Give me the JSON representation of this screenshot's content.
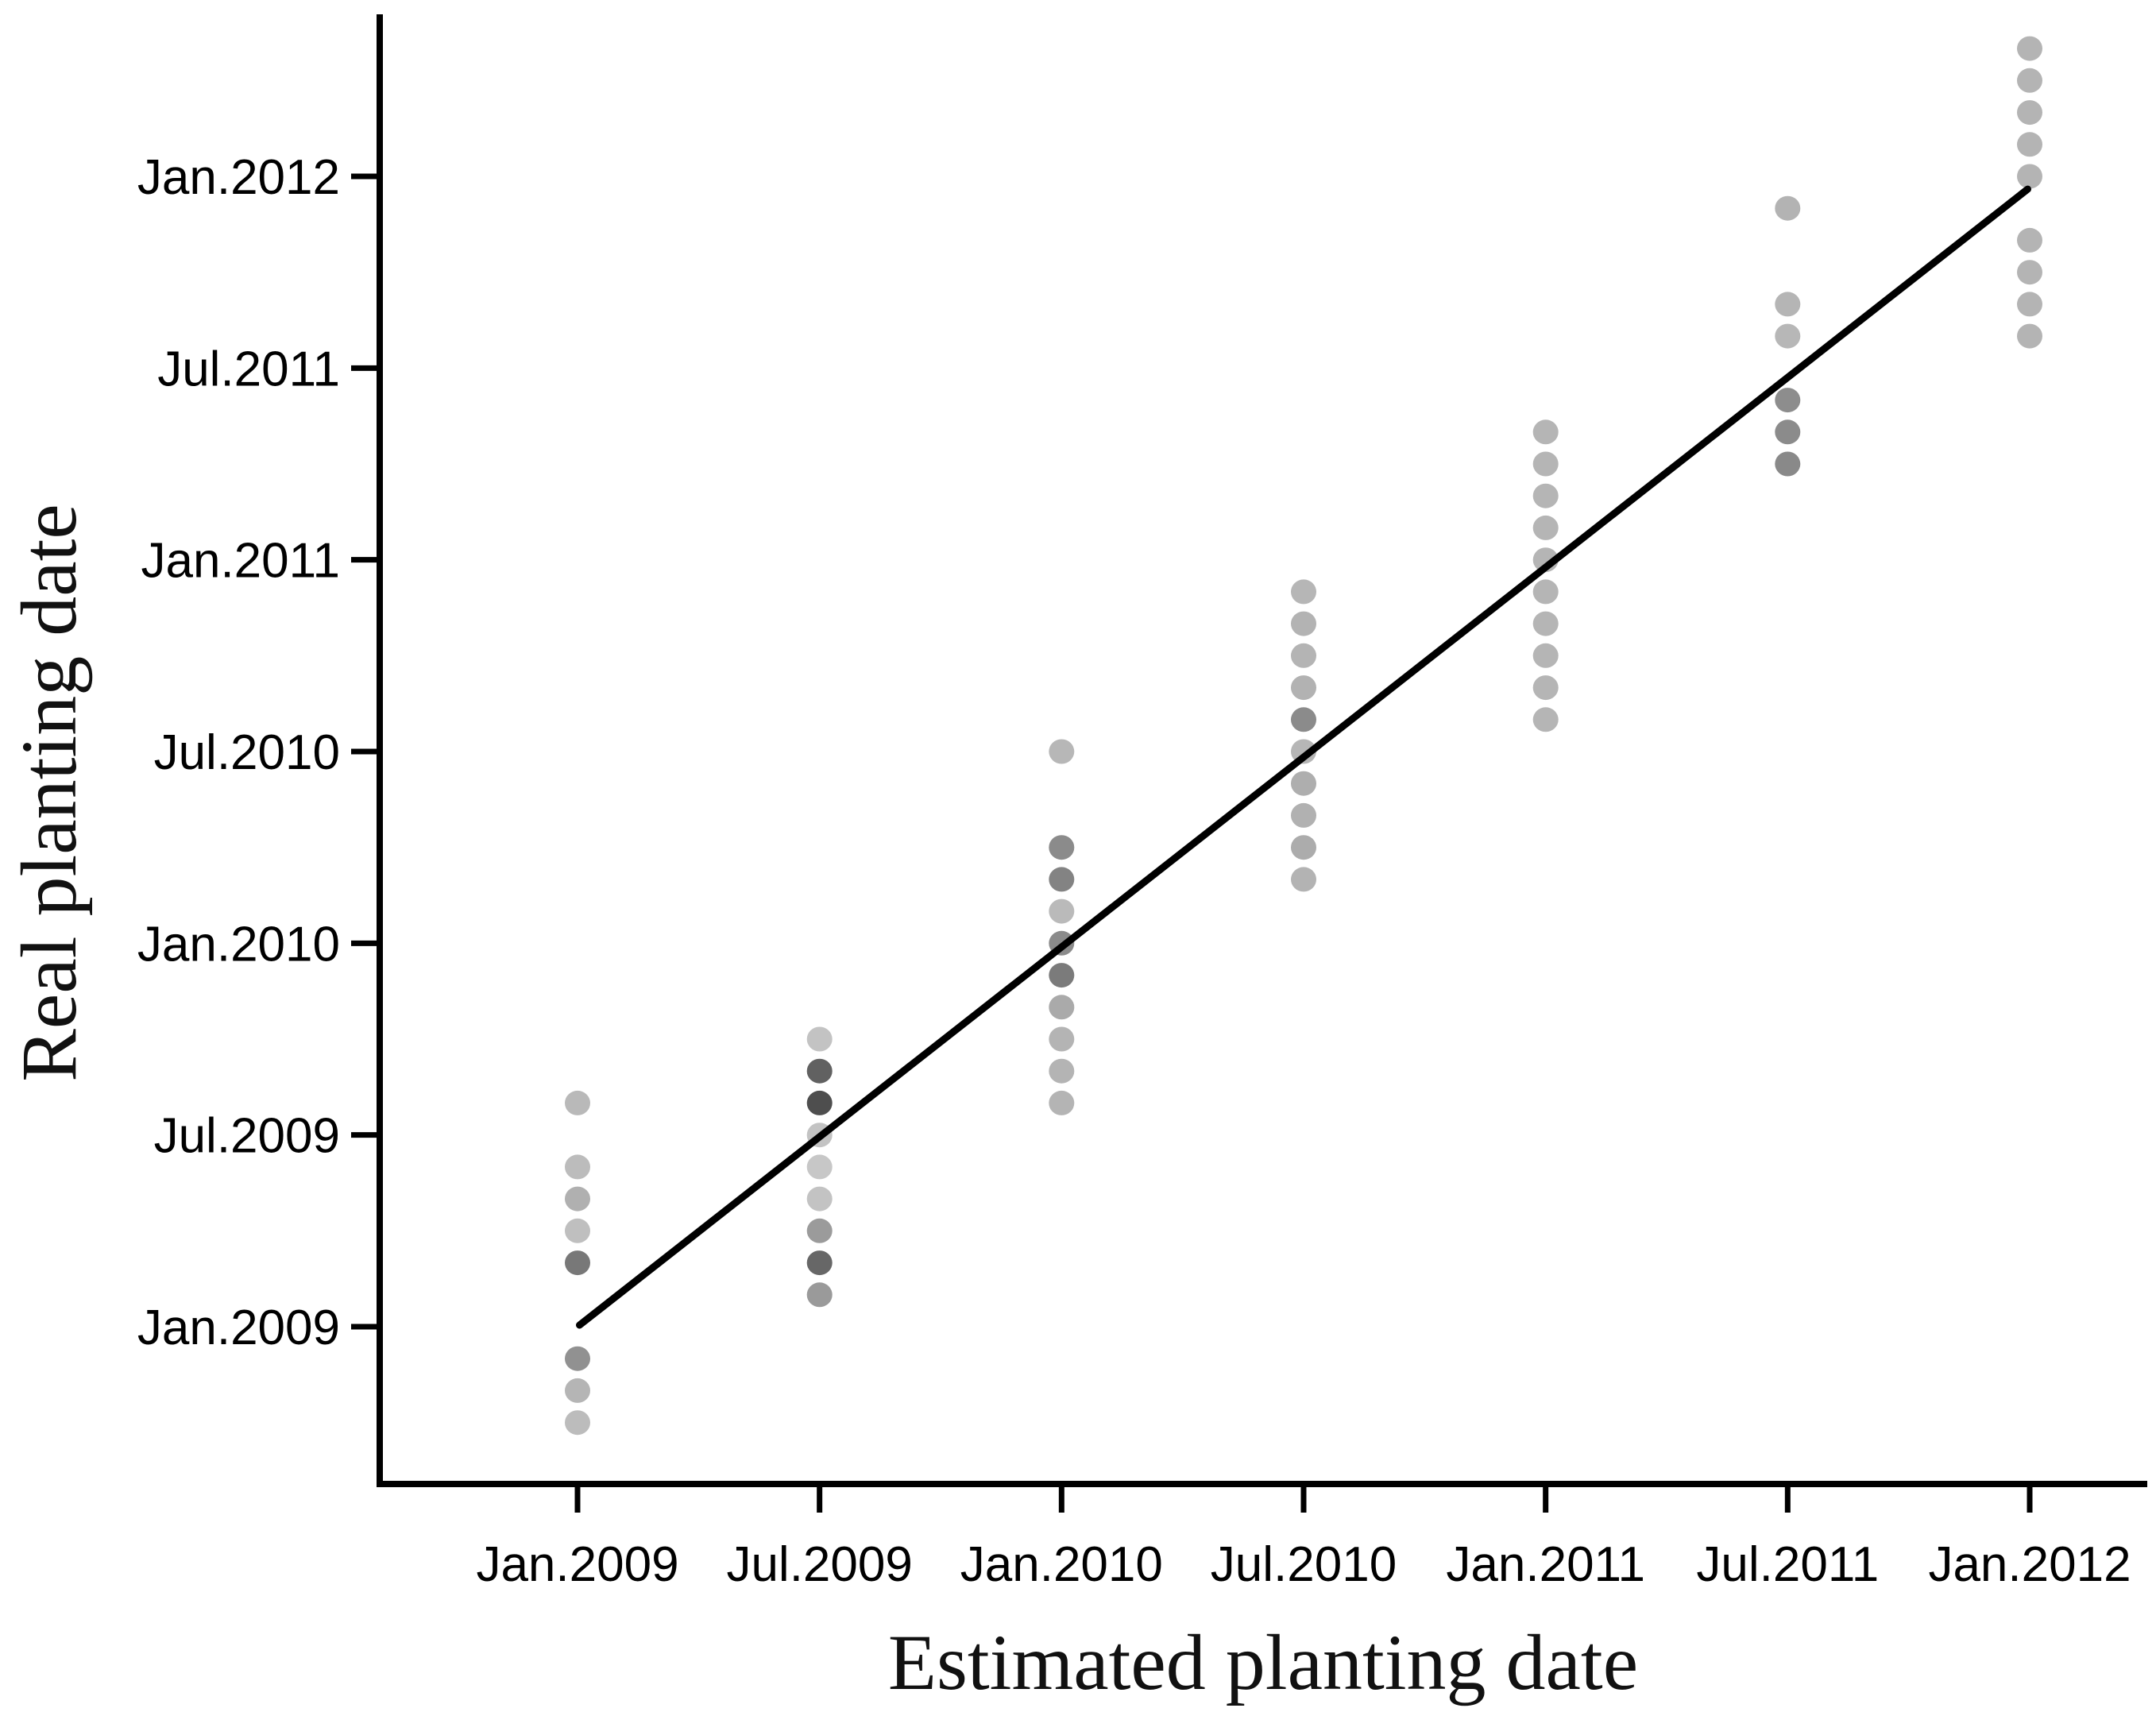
{
  "chart_data": {
    "type": "scatter",
    "title": "",
    "xlabel": "Estimated planting date",
    "ylabel": "Real planting date",
    "axis_color": "#000000",
    "identity_line_color": "#000000",
    "grid": "off",
    "legend": "none",
    "x_axis_range": [
      "Jan.2009",
      "Jan.2012"
    ],
    "y_axis_range": [
      "Jan.2009",
      "Jan.2012"
    ],
    "x_ticks": [
      {
        "label": "Jan.2009",
        "month": 0
      },
      {
        "label": "Jul.2009",
        "month": 6
      },
      {
        "label": "Jan.2010",
        "month": 12
      },
      {
        "label": "Jul.2010",
        "month": 18
      },
      {
        "label": "Jan.2011",
        "month": 24
      },
      {
        "label": "Jul.2011",
        "month": 30
      },
      {
        "label": "Jan.2012",
        "month": 36
      }
    ],
    "y_ticks": [
      {
        "label": "Jan.2012",
        "month": 36
      },
      {
        "label": "Jul.2011",
        "month": 30
      },
      {
        "label": "Jan.2011",
        "month": 24
      },
      {
        "label": "Jul.2010",
        "month": 18
      },
      {
        "label": "Jan.2010",
        "month": 12
      },
      {
        "label": "Jul.2009",
        "month": 6
      },
      {
        "label": "Jan.2009",
        "month": 0
      }
    ],
    "identity_line": {
      "from_est": 0.05,
      "from_real": 0.05,
      "to_est": 35.95,
      "to_real": 35.6
    },
    "clusters": [
      {
        "estimated": "Jan.2009",
        "est_month": 0,
        "points": [
          {
            "real": "Aug.2009",
            "real_month": 7,
            "color": "#b9b9b9"
          },
          {
            "real": "Jun.2009",
            "real_month": 5,
            "color": "#bcbcbc"
          },
          {
            "real": "May.2009",
            "real_month": 4,
            "color": "#b0b0b0"
          },
          {
            "real": "Apr.2009",
            "real_month": 3,
            "color": "#bfbfbf"
          },
          {
            "real": "Mar.2009",
            "real_month": 2,
            "color": "#787878"
          },
          {
            "real": "Dec.2008",
            "real_month": -1,
            "color": "#919191"
          },
          {
            "real": "Nov.2008",
            "real_month": -2,
            "color": "#b5b5b5"
          },
          {
            "real": "Oct.2008",
            "real_month": -3,
            "color": "#bcbcbc"
          }
        ]
      },
      {
        "estimated": "Jul.2009",
        "est_month": 6,
        "points": [
          {
            "real": "Oct.2009",
            "real_month": 9,
            "color": "#c3c3c3"
          },
          {
            "real": "Sep.2009",
            "real_month": 8,
            "color": "#616161"
          },
          {
            "real": "Aug.2009",
            "real_month": 7,
            "color": "#4e4e4e"
          },
          {
            "real": "Jul.2009",
            "real_month": 6,
            "color": "#c3c3c3"
          },
          {
            "real": "Jun.2009",
            "real_month": 5,
            "color": "#c7c7c7"
          },
          {
            "real": "May.2009",
            "real_month": 4,
            "color": "#c3c3c3"
          },
          {
            "real": "Apr.2009",
            "real_month": 3,
            "color": "#9b9b9b"
          },
          {
            "real": "Mar.2009",
            "real_month": 2,
            "color": "#676767"
          },
          {
            "real": "Feb.2009",
            "real_month": 1,
            "color": "#9a9a9a"
          }
        ]
      },
      {
        "estimated": "Jan.2010",
        "est_month": 12,
        "points": [
          {
            "real": "Jul.2010",
            "real_month": 18,
            "color": "#b7b7b7"
          },
          {
            "real": "Apr.2010",
            "real_month": 15,
            "color": "#8b8b8b"
          },
          {
            "real": "Mar.2010",
            "real_month": 14,
            "color": "#838383"
          },
          {
            "real": "Feb.2010",
            "real_month": 13,
            "color": "#bababa"
          },
          {
            "real": "Jan.2010",
            "real_month": 12,
            "color": "#8b8b8b"
          },
          {
            "real": "Dec.2009",
            "real_month": 11,
            "color": "#7b7b7b"
          },
          {
            "real": "Nov.2009",
            "real_month": 10,
            "color": "#aaaaaa"
          },
          {
            "real": "Oct.2009",
            "real_month": 9,
            "color": "#b4b4b4"
          },
          {
            "real": "Sep.2009",
            "real_month": 8,
            "color": "#b4b4b4"
          },
          {
            "real": "Aug.2009",
            "real_month": 7,
            "color": "#b4b4b4"
          }
        ]
      },
      {
        "estimated": "Jul.2010",
        "est_month": 18,
        "points": [
          {
            "real": "Dec.2010",
            "real_month": 23,
            "color": "#b6b6b6"
          },
          {
            "real": "Nov.2010",
            "real_month": 22,
            "color": "#b3b3b3"
          },
          {
            "real": "Oct.2010",
            "real_month": 21,
            "color": "#b4b4b4"
          },
          {
            "real": "Sep.2010",
            "real_month": 20,
            "color": "#b2b2b2"
          },
          {
            "real": "Aug.2010",
            "real_month": 19,
            "color": "#8b8b8b"
          },
          {
            "real": "Jul.2010",
            "real_month": 18,
            "color": "#b6b6b6"
          },
          {
            "real": "Jun.2010",
            "real_month": 17,
            "color": "#aeaeae"
          },
          {
            "real": "May.2010",
            "real_month": 16,
            "color": "#b1b1b1"
          },
          {
            "real": "Apr.2010",
            "real_month": 15,
            "color": "#acacac"
          },
          {
            "real": "Mar.2010",
            "real_month": 14,
            "color": "#b3b3b3"
          }
        ]
      },
      {
        "estimated": "Jan.2011",
        "est_month": 24,
        "points": [
          {
            "real": "May.2011",
            "real_month": 28,
            "color": "#b5b5b5"
          },
          {
            "real": "Apr.2011",
            "real_month": 27,
            "color": "#b5b5b5"
          },
          {
            "real": "Mar.2011",
            "real_month": 26,
            "color": "#b5b5b5"
          },
          {
            "real": "Feb.2011",
            "real_month": 25,
            "color": "#b5b5b5"
          },
          {
            "real": "Jan.2011",
            "real_month": 24,
            "color": "#b5b5b5"
          },
          {
            "real": "Dec.2010",
            "real_month": 23,
            "color": "#b5b5b5"
          },
          {
            "real": "Nov.2010",
            "real_month": 22,
            "color": "#b5b5b5"
          },
          {
            "real": "Oct.2010",
            "real_month": 21,
            "color": "#b5b5b5"
          },
          {
            "real": "Sep.2010",
            "real_month": 20,
            "color": "#b5b5b5"
          },
          {
            "real": "Aug.2010",
            "real_month": 19,
            "color": "#b5b5b5"
          }
        ]
      },
      {
        "estimated": "Jul.2011",
        "est_month": 30,
        "points": [
          {
            "real": "Dec.2011",
            "real_month": 35,
            "color": "#b3b3b3"
          },
          {
            "real": "Sep.2011",
            "real_month": 32,
            "color": "#b5b5b5"
          },
          {
            "real": "Aug.2011",
            "real_month": 31,
            "color": "#b7b7b7"
          },
          {
            "real": "Jun.2011",
            "real_month": 29,
            "color": "#8d8d8d"
          },
          {
            "real": "May.2011",
            "real_month": 28,
            "color": "#8b8b8b"
          },
          {
            "real": "Apr.2011",
            "real_month": 27,
            "color": "#898989"
          }
        ]
      },
      {
        "estimated": "Jan.2012",
        "est_month": 36,
        "points": [
          {
            "real": "May.2012",
            "real_month": 40,
            "color": "#b4b4b4"
          },
          {
            "real": "Apr.2012",
            "real_month": 39,
            "color": "#b4b4b4"
          },
          {
            "real": "Mar.2012",
            "real_month": 38,
            "color": "#b4b4b4"
          },
          {
            "real": "Feb.2012",
            "real_month": 37,
            "color": "#b4b4b4"
          },
          {
            "real": "Jan.2012",
            "real_month": 36,
            "color": "#b4b4b4"
          },
          {
            "real": "Nov.2011",
            "real_month": 34,
            "color": "#b4b4b4"
          },
          {
            "real": "Oct.2011",
            "real_month": 33,
            "color": "#b4b4b4"
          },
          {
            "real": "Sep.2011",
            "real_month": 32,
            "color": "#b4b4b4"
          },
          {
            "real": "Aug.2011",
            "real_month": 31,
            "color": "#b4b4b4"
          }
        ]
      }
    ]
  }
}
